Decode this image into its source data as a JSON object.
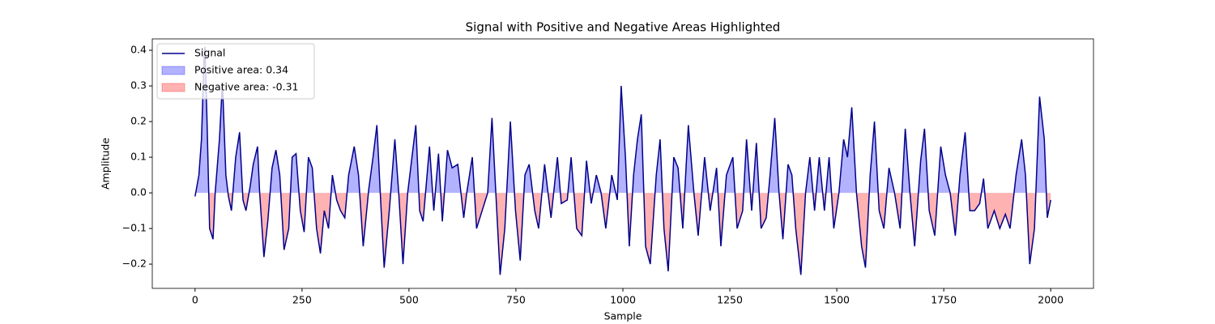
{
  "chart_data": {
    "type": "line",
    "title": "Signal with Positive and Negative Areas Highlighted",
    "x_label": "Sample",
    "y_label": "Amplitude",
    "x": [
      0,
      9,
      15,
      21,
      23,
      28,
      34,
      42,
      47,
      57,
      64,
      72,
      78,
      85,
      95,
      104,
      112,
      119,
      129,
      136,
      146,
      151,
      161,
      170,
      180,
      189,
      198,
      208,
      219,
      227,
      236,
      246,
      255,
      265,
      274,
      284,
      293,
      302,
      312,
      321,
      331,
      340,
      350,
      359,
      372,
      382,
      393,
      406,
      416,
      425,
      435,
      442,
      454,
      467,
      476,
      486,
      497,
      516,
      525,
      533,
      548,
      558,
      569,
      578,
      590,
      601,
      614,
      628,
      635,
      648,
      658,
      671,
      684,
      694,
      703,
      713,
      724,
      737,
      749,
      760,
      771,
      781,
      794,
      803,
      817,
      832,
      847,
      856,
      870,
      879,
      892,
      904,
      915,
      926,
      938,
      949,
      960,
      974,
      987,
      996,
      1006,
      1015,
      1025,
      1034,
      1043,
      1053,
      1064,
      1078,
      1087,
      1096,
      1106,
      1119,
      1129,
      1140,
      1153,
      1166,
      1176,
      1191,
      1204,
      1219,
      1229,
      1242,
      1257,
      1267,
      1280,
      1289,
      1301,
      1312,
      1323,
      1335,
      1344,
      1355,
      1365,
      1374,
      1386,
      1395,
      1404,
      1416,
      1427,
      1437,
      1448,
      1459,
      1471,
      1482,
      1493,
      1505,
      1516,
      1525,
      1535,
      1546,
      1558,
      1567,
      1578,
      1588,
      1599,
      1610,
      1622,
      1635,
      1648,
      1660,
      1671,
      1682,
      1696,
      1705,
      1716,
      1729,
      1743,
      1754,
      1765,
      1777,
      1788,
      1800,
      1811,
      1822,
      1834,
      1843,
      1853,
      1868,
      1881,
      1894,
      1905,
      1919,
      1932,
      1941,
      1951,
      1962,
      1974,
      1985,
      1992,
      2000
    ],
    "series": [
      {
        "name": "Signal",
        "color": "#00008b",
        "values": [
          -0.01,
          0.05,
          0.15,
          0.38,
          0.41,
          0.2,
          -0.1,
          -0.13,
          0.0,
          0.15,
          0.31,
          0.05,
          -0.01,
          -0.05,
          0.1,
          0.17,
          -0.02,
          -0.05,
          0.02,
          0.08,
          0.13,
          0.0,
          -0.18,
          -0.08,
          0.07,
          0.12,
          0.05,
          -0.16,
          -0.1,
          0.1,
          0.11,
          -0.05,
          -0.11,
          0.1,
          0.07,
          -0.1,
          -0.17,
          -0.05,
          -0.1,
          0.05,
          -0.02,
          -0.05,
          -0.07,
          0.05,
          0.13,
          0.05,
          -0.15,
          0.01,
          0.1,
          0.19,
          -0.05,
          -0.21,
          -0.05,
          0.15,
          0.0,
          -0.2,
          0.0,
          0.19,
          -0.05,
          -0.08,
          0.13,
          -0.05,
          0.11,
          -0.08,
          0.12,
          0.07,
          0.08,
          -0.07,
          0.0,
          0.1,
          -0.1,
          -0.05,
          0.0,
          0.21,
          0.0,
          -0.23,
          -0.1,
          0.2,
          -0.05,
          -0.19,
          0.05,
          0.08,
          -0.05,
          -0.1,
          0.08,
          -0.07,
          0.1,
          -0.03,
          -0.02,
          0.1,
          -0.1,
          -0.12,
          0.09,
          -0.03,
          0.05,
          0.0,
          -0.1,
          0.05,
          -0.02,
          0.3,
          0.1,
          -0.15,
          0.05,
          0.15,
          0.22,
          -0.15,
          -0.2,
          0.05,
          0.15,
          -0.1,
          -0.22,
          0.1,
          0.07,
          -0.1,
          0.19,
          0.0,
          -0.12,
          0.1,
          -0.05,
          0.07,
          -0.15,
          0.05,
          0.1,
          -0.1,
          -0.05,
          0.15,
          -0.05,
          0.14,
          -0.1,
          -0.07,
          0.05,
          0.21,
          0.0,
          -0.13,
          0.08,
          0.05,
          -0.1,
          -0.23,
          0.0,
          0.1,
          -0.05,
          0.1,
          -0.05,
          0.1,
          -0.1,
          0.0,
          0.15,
          0.1,
          0.24,
          0.0,
          -0.15,
          -0.21,
          0.05,
          0.2,
          -0.05,
          -0.1,
          0.07,
          0.0,
          -0.1,
          0.18,
          0.0,
          -0.15,
          0.09,
          0.18,
          -0.05,
          -0.12,
          0.13,
          0.05,
          0.0,
          -0.12,
          0.05,
          0.17,
          -0.05,
          -0.05,
          -0.03,
          0.04,
          -0.1,
          -0.05,
          -0.1,
          -0.06,
          -0.1,
          0.05,
          0.15,
          0.05,
          -0.2,
          -0.1,
          0.27,
          0.15,
          -0.07,
          -0.02
        ]
      }
    ],
    "areas": [
      {
        "name": "Positive area: 0.34",
        "color": "#0000ff",
        "side": "positive"
      },
      {
        "name": "Negative area: -0.31",
        "color": "#ff0000",
        "side": "negative"
      }
    ],
    "xlim": [
      -100,
      2100
    ],
    "ylim": [
      -0.268,
      0.432
    ],
    "xticks": [
      0,
      250,
      500,
      750,
      1000,
      1250,
      1500,
      1750,
      2000
    ],
    "yticks": [
      {
        "value": -0.2,
        "label": "−0.2"
      },
      {
        "value": -0.1,
        "label": "−0.1"
      },
      {
        "value": 0,
        "label": "0.0"
      },
      0.1,
      0.2,
      0.3,
      0.4
    ],
    "legend": "upper left"
  }
}
